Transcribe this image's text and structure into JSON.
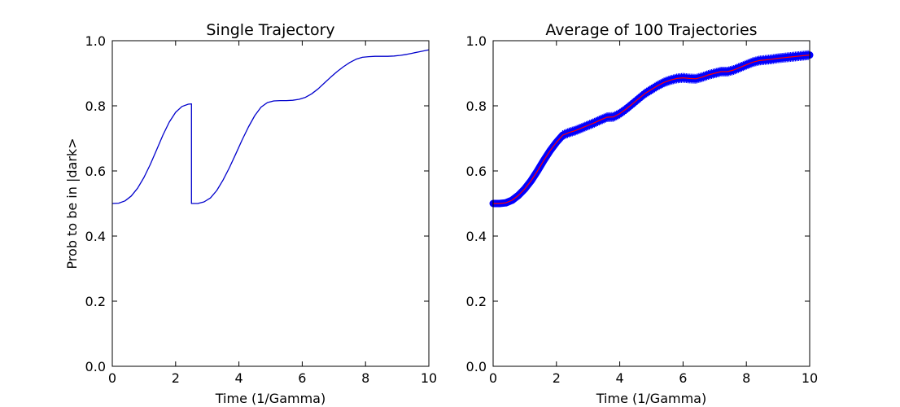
{
  "chart_data": [
    {
      "type": "line",
      "title": "Single Trajectory",
      "xlabel": "Time (1/Gamma)",
      "ylabel": "Prob to be in |dark>",
      "xlim": [
        0,
        10
      ],
      "ylim": [
        0,
        1.0
      ],
      "x_ticks": [
        0,
        2,
        4,
        6,
        8,
        10
      ],
      "y_ticks": [
        "0.0",
        "0.2",
        "0.4",
        "0.6",
        "0.8",
        "1.0"
      ],
      "grid": false,
      "series": [
        {
          "color": "#0000cc",
          "x": [
            0,
            0.2,
            0.4,
            0.6,
            0.8,
            1.0,
            1.2,
            1.4,
            1.6,
            1.8,
            2.0,
            2.2,
            2.4,
            2.5,
            2.5,
            2.7,
            2.9,
            3.1,
            3.3,
            3.5,
            3.7,
            3.9,
            4.1,
            4.3,
            4.5,
            4.7,
            4.9,
            5.1,
            5.3,
            5.5,
            5.7,
            5.9,
            6.1,
            6.3,
            6.5,
            6.7,
            6.9,
            7.1,
            7.3,
            7.5,
            7.7,
            7.9,
            8.1,
            8.3,
            8.5,
            8.7,
            8.9,
            9.1,
            9.3,
            9.5,
            9.7,
            9.9,
            10.0
          ],
          "y": [
            0.5,
            0.501,
            0.508,
            0.523,
            0.547,
            0.58,
            0.62,
            0.665,
            0.71,
            0.75,
            0.78,
            0.798,
            0.805,
            0.806,
            0.5,
            0.5,
            0.505,
            0.517,
            0.54,
            0.572,
            0.61,
            0.652,
            0.695,
            0.735,
            0.77,
            0.796,
            0.81,
            0.815,
            0.816,
            0.816,
            0.817,
            0.82,
            0.826,
            0.837,
            0.852,
            0.87,
            0.888,
            0.905,
            0.92,
            0.933,
            0.943,
            0.949,
            0.951,
            0.952,
            0.952,
            0.952,
            0.953,
            0.955,
            0.958,
            0.962,
            0.966,
            0.97,
            0.972
          ]
        }
      ]
    },
    {
      "type": "line",
      "title": "Average of 100 Trajectories",
      "xlabel": "Time (1/Gamma)",
      "ylabel": "",
      "xlim": [
        0,
        10
      ],
      "ylim": [
        0,
        1.0
      ],
      "x_ticks": [
        0,
        2,
        4,
        6,
        8,
        10
      ],
      "y_ticks": [
        "0.0",
        "0.2",
        "0.4",
        "0.6",
        "0.8",
        "1.0"
      ],
      "grid": false,
      "series": [
        {
          "color": "#ff0000",
          "error_color": "#0000ff",
          "x": [
            0,
            0.2,
            0.4,
            0.6,
            0.8,
            1.0,
            1.2,
            1.4,
            1.6,
            1.8,
            2.0,
            2.2,
            2.4,
            2.6,
            2.8,
            3.0,
            3.2,
            3.4,
            3.6,
            3.8,
            4.0,
            4.2,
            4.4,
            4.6,
            4.8,
            5.0,
            5.2,
            5.4,
            5.6,
            5.8,
            6.0,
            6.2,
            6.4,
            6.6,
            6.8,
            7.0,
            7.2,
            7.4,
            7.6,
            7.8,
            8.0,
            8.2,
            8.4,
            8.6,
            8.8,
            9.0,
            9.2,
            9.4,
            9.6,
            9.8,
            10.0
          ],
          "y": [
            0.5,
            0.5,
            0.502,
            0.51,
            0.525,
            0.545,
            0.57,
            0.6,
            0.632,
            0.662,
            0.688,
            0.71,
            0.718,
            0.724,
            0.732,
            0.74,
            0.748,
            0.757,
            0.765,
            0.766,
            0.776,
            0.79,
            0.806,
            0.822,
            0.838,
            0.85,
            0.862,
            0.872,
            0.879,
            0.884,
            0.886,
            0.884,
            0.883,
            0.888,
            0.895,
            0.9,
            0.905,
            0.905,
            0.91,
            0.918,
            0.926,
            0.934,
            0.939,
            0.941,
            0.943,
            0.946,
            0.948,
            0.95,
            0.952,
            0.954,
            0.956
          ]
        }
      ]
    }
  ]
}
